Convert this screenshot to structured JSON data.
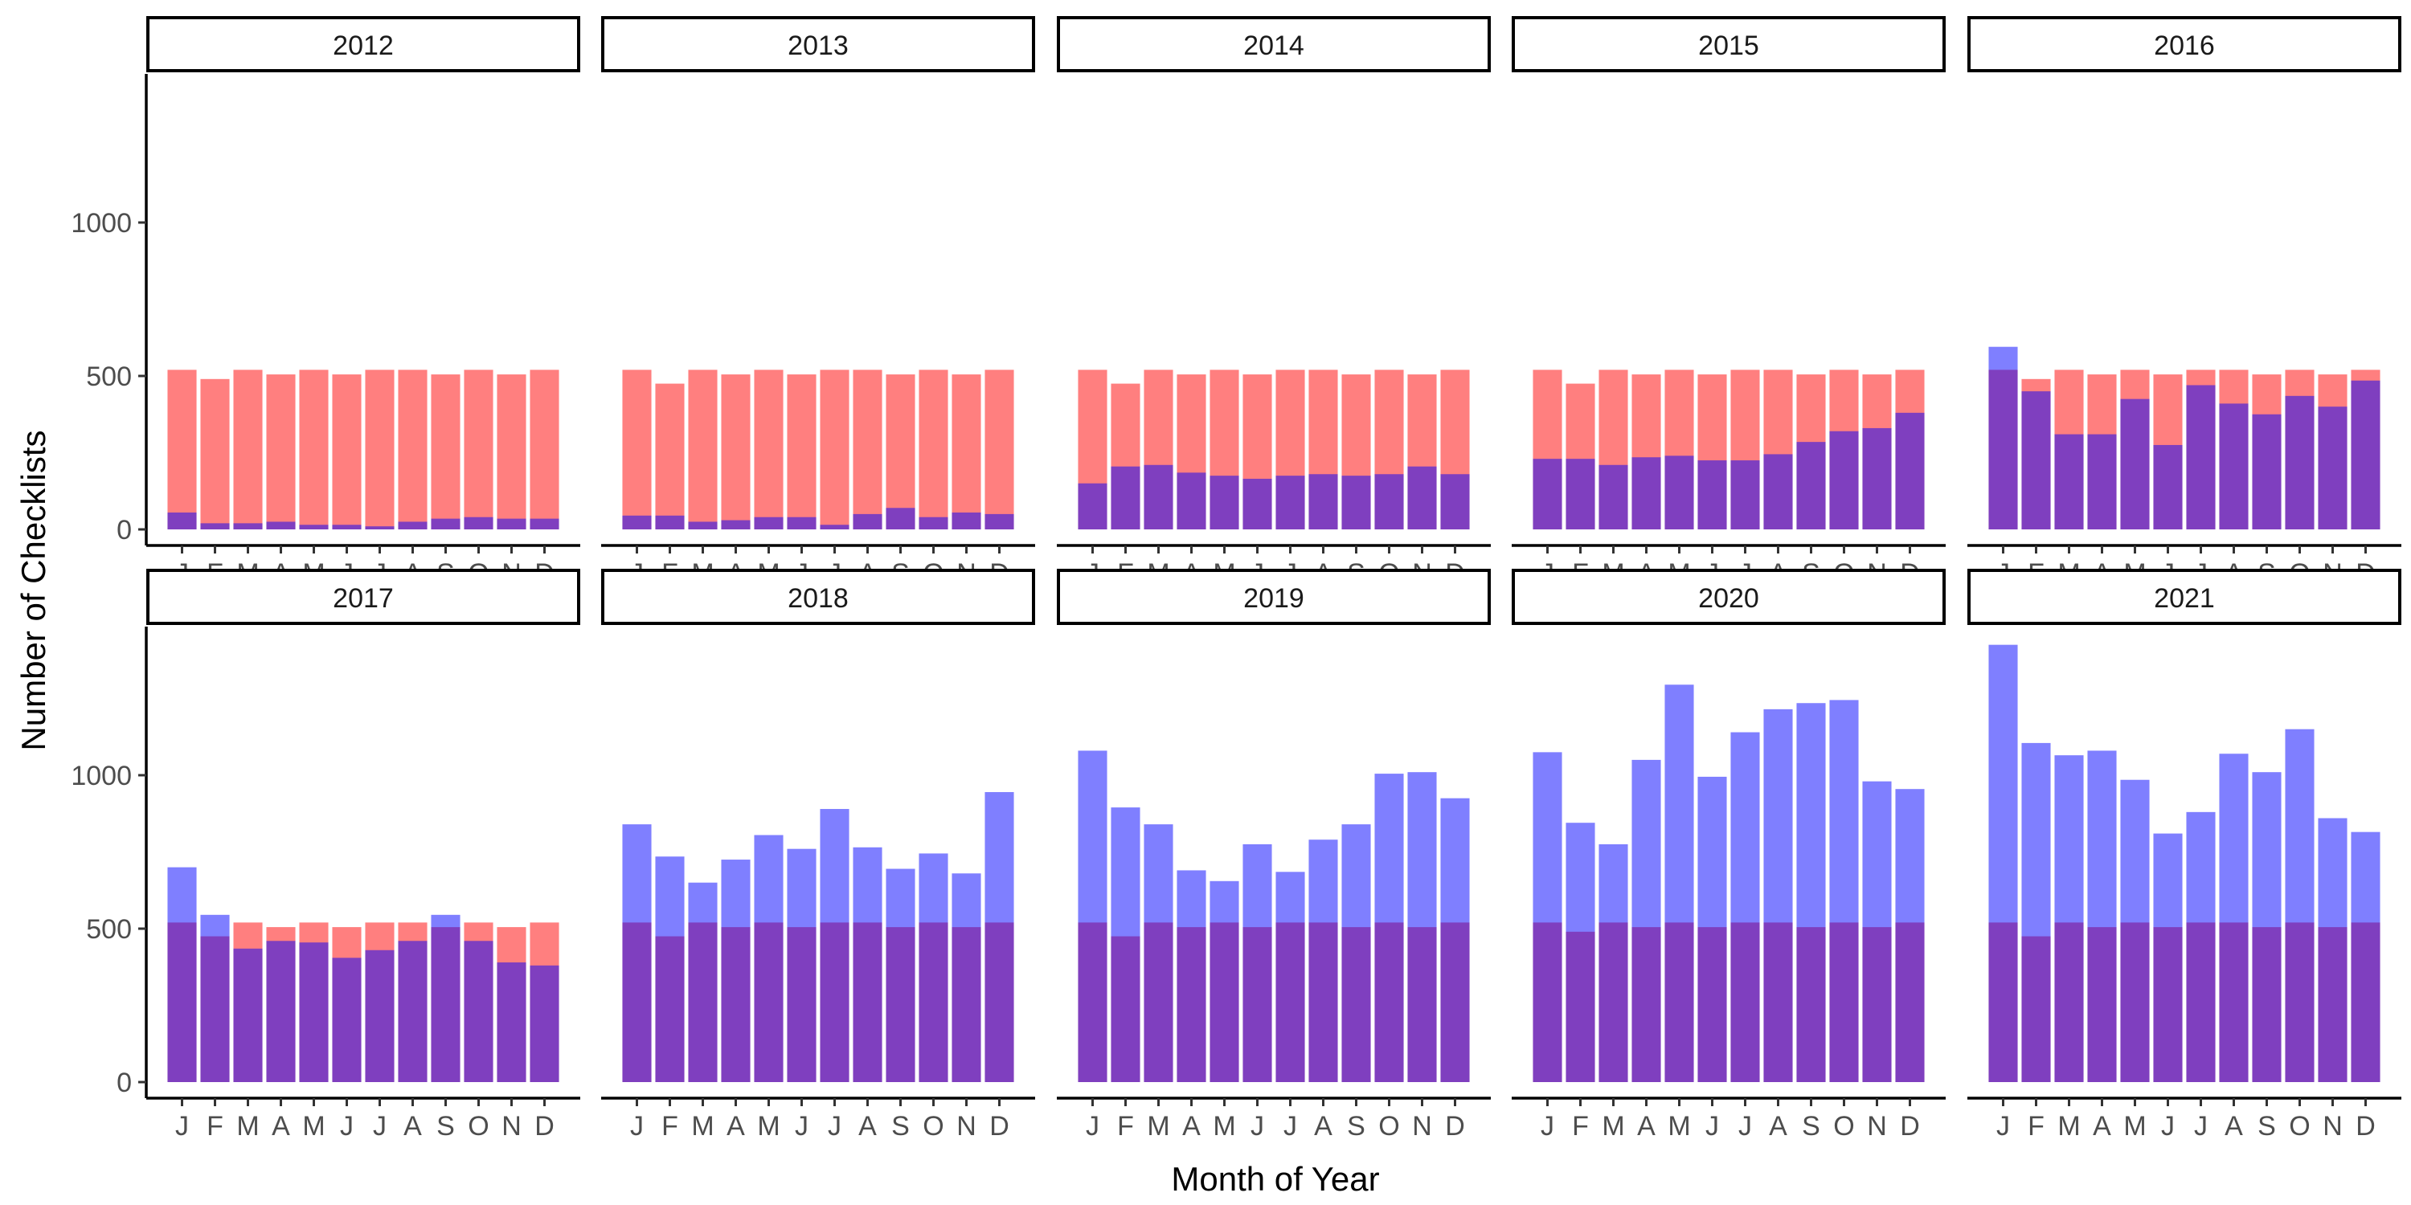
{
  "chart_data": {
    "type": "bar",
    "layout": "facet-grid 2 rows x 5 columns, overlaid semi-transparent bars",
    "xlabel": "Month of Year",
    "ylabel": "Number of Checklists",
    "ylim": [
      0,
      1500
    ],
    "yticks": [
      0,
      500,
      1000
    ],
    "month_ticks": [
      "J",
      "F",
      "M",
      "A",
      "M",
      "J",
      "J",
      "A",
      "S",
      "O",
      "N",
      "D"
    ],
    "grid": false,
    "legend": "none",
    "colors": {
      "series_a": "#ff0000",
      "series_b": "#0000ff",
      "opacity": 0.5
    },
    "facets": [
      {
        "label": "2012",
        "series_a": [
          520,
          490,
          520,
          505,
          520,
          505,
          520,
          520,
          505,
          520,
          505,
          520
        ],
        "series_b": [
          55,
          20,
          20,
          25,
          15,
          15,
          10,
          25,
          35,
          40,
          35,
          35
        ]
      },
      {
        "label": "2013",
        "series_a": [
          520,
          475,
          520,
          505,
          520,
          505,
          520,
          520,
          505,
          520,
          505,
          520
        ],
        "series_b": [
          45,
          45,
          25,
          30,
          40,
          40,
          15,
          50,
          70,
          40,
          55,
          50
        ]
      },
      {
        "label": "2014",
        "series_a": [
          520,
          475,
          520,
          505,
          520,
          505,
          520,
          520,
          505,
          520,
          505,
          520
        ],
        "series_b": [
          150,
          205,
          210,
          185,
          175,
          165,
          175,
          180,
          175,
          180,
          205,
          180
        ]
      },
      {
        "label": "2015",
        "series_a": [
          520,
          475,
          520,
          505,
          520,
          505,
          520,
          520,
          505,
          520,
          505,
          520
        ],
        "series_b": [
          230,
          230,
          210,
          235,
          240,
          225,
          225,
          245,
          285,
          320,
          330,
          380
        ]
      },
      {
        "label": "2016",
        "series_a": [
          520,
          490,
          520,
          505,
          520,
          505,
          520,
          520,
          505,
          520,
          505,
          520
        ],
        "series_b": [
          595,
          450,
          310,
          310,
          425,
          275,
          470,
          410,
          375,
          435,
          400,
          485
        ]
      },
      {
        "label": "2017",
        "series_a": [
          520,
          475,
          520,
          505,
          520,
          505,
          520,
          520,
          505,
          520,
          505,
          520
        ],
        "series_b": [
          700,
          545,
          435,
          460,
          455,
          405,
          430,
          460,
          545,
          460,
          390,
          380
        ]
      },
      {
        "label": "2018",
        "series_a": [
          520,
          475,
          520,
          505,
          520,
          505,
          520,
          520,
          505,
          520,
          505,
          520
        ],
        "series_b": [
          840,
          735,
          650,
          725,
          805,
          760,
          890,
          765,
          695,
          745,
          680,
          945
        ]
      },
      {
        "label": "2019",
        "series_a": [
          520,
          475,
          520,
          505,
          520,
          505,
          520,
          520,
          505,
          520,
          505,
          520
        ],
        "series_b": [
          1080,
          895,
          840,
          690,
          655,
          775,
          685,
          790,
          840,
          1005,
          1010,
          925
        ]
      },
      {
        "label": "2020",
        "series_a": [
          520,
          490,
          520,
          505,
          520,
          505,
          520,
          520,
          505,
          520,
          505,
          520
        ],
        "series_b": [
          1075,
          845,
          775,
          1050,
          1295,
          995,
          1140,
          1215,
          1235,
          1245,
          980,
          955
        ]
      },
      {
        "label": "2021",
        "series_a": [
          520,
          475,
          520,
          505,
          520,
          505,
          520,
          520,
          505,
          520,
          505,
          520
        ],
        "series_b": [
          1425,
          1105,
          1065,
          1080,
          985,
          810,
          880,
          1070,
          1010,
          1150,
          860,
          815
        ]
      }
    ]
  }
}
